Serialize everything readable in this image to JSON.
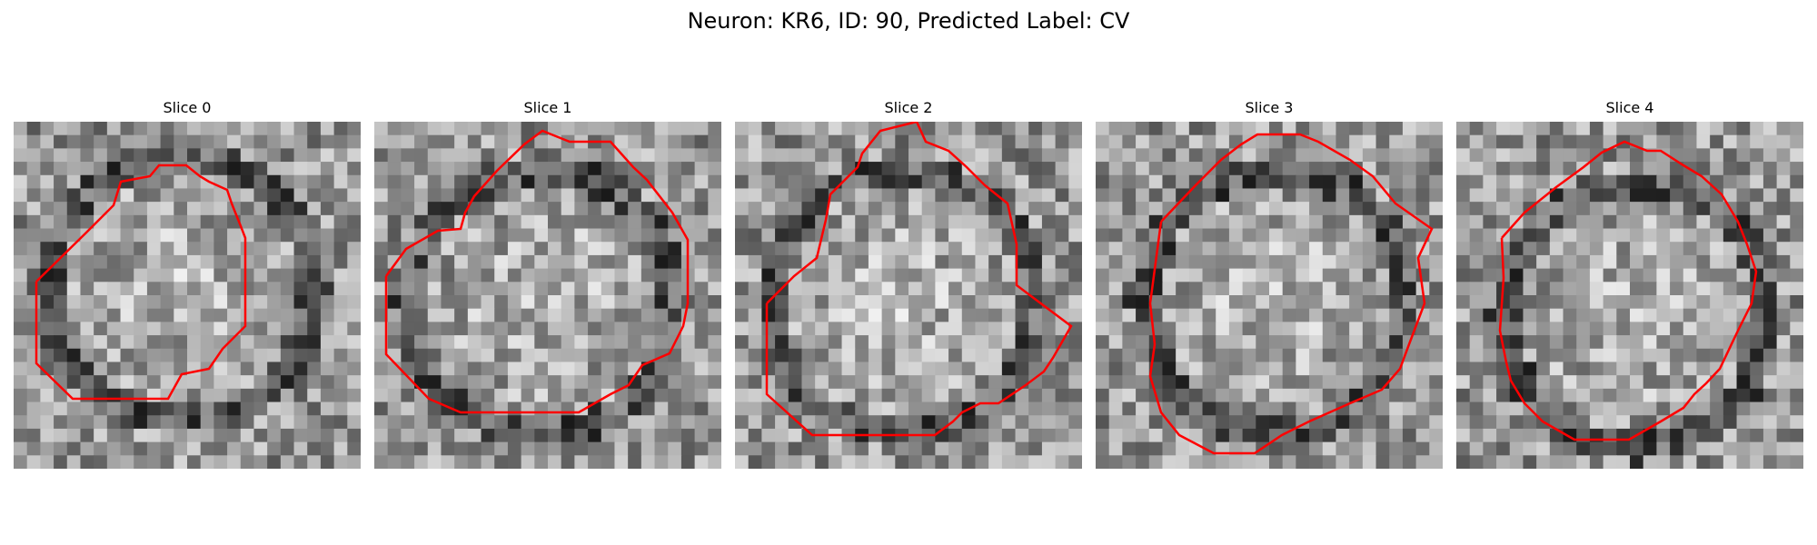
{
  "figure": {
    "title": "Neuron: KR6, ID: 90, Predicted Label: CV"
  },
  "panels": [
    {
      "title": "Slice 0"
    },
    {
      "title": "Slice 1"
    },
    {
      "title": "Slice 2"
    },
    {
      "title": "Slice 3"
    },
    {
      "title": "Slice 4"
    }
  ],
  "style": {
    "contour_color": "#ff0000",
    "colormap": "grayscale"
  }
}
